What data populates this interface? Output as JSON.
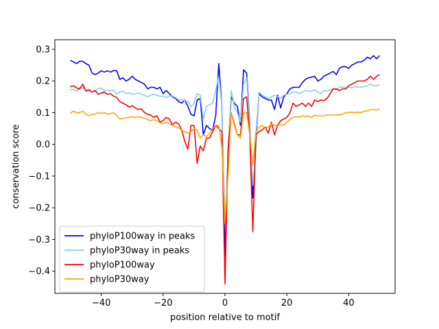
{
  "chart_data": {
    "type": "line",
    "xlabel": "position relative to motif",
    "ylabel": "conservation score",
    "xlim": [
      -55,
      55
    ],
    "ylim": [
      -0.47,
      0.33
    ],
    "xticks": [
      -40,
      -20,
      0,
      20,
      40
    ],
    "xtick_labels": [
      "−40",
      "−20",
      "0",
      "20",
      "40"
    ],
    "yticks": [
      -0.4,
      -0.3,
      -0.2,
      -0.1,
      0.0,
      0.1,
      0.2,
      0.3
    ],
    "ytick_labels": [
      "−0.4",
      "−0.3",
      "−0.2",
      "−0.1",
      "0.0",
      "0.1",
      "0.2",
      "0.3"
    ],
    "grid": false,
    "legend_position": "lower-left",
    "x_range": [
      -50,
      50
    ],
    "series": [
      {
        "name": "phyloP100way in peaks",
        "color": "#0000ff",
        "values": [
          0.265,
          0.26,
          0.255,
          0.262,
          0.262,
          0.255,
          0.25,
          0.225,
          0.22,
          0.225,
          0.232,
          0.228,
          0.232,
          0.228,
          0.233,
          0.232,
          0.205,
          0.21,
          0.2,
          0.205,
          0.215,
          0.205,
          0.2,
          0.195,
          0.19,
          0.175,
          0.18,
          0.18,
          0.175,
          0.18,
          0.16,
          0.17,
          0.16,
          0.15,
          0.145,
          0.135,
          0.13,
          0.14,
          0.12,
          0.095,
          0.09,
          0.14,
          0.145,
          0.03,
          0.06,
          0.05,
          0.045,
          0.09,
          0.255,
          0.12,
          -0.35,
          -0.02,
          0.15,
          0.13,
          0.12,
          0.06,
          0.235,
          0.225,
          0.07,
          -0.17,
          0.01,
          0.16,
          0.15,
          0.145,
          0.14,
          0.14,
          0.11,
          0.155,
          0.115,
          0.15,
          0.16,
          0.175,
          0.18,
          0.18,
          0.18,
          0.195,
          0.205,
          0.21,
          0.212,
          0.215,
          0.2,
          0.205,
          0.215,
          0.22,
          0.225,
          0.23,
          0.22,
          0.24,
          0.245,
          0.245,
          0.24,
          0.25,
          0.255,
          0.26,
          0.26,
          0.265,
          0.275,
          0.27,
          0.28,
          0.27,
          0.28
        ]
      },
      {
        "name": "phyloP30way in peaks",
        "color": "#87ceeb",
        "values": [
          0.172,
          0.173,
          0.168,
          0.175,
          0.18,
          0.172,
          0.17,
          0.165,
          0.168,
          0.175,
          0.178,
          0.17,
          0.172,
          0.168,
          0.17,
          0.158,
          0.165,
          0.168,
          0.16,
          0.162,
          0.158,
          0.16,
          0.162,
          0.158,
          0.155,
          0.15,
          0.155,
          0.158,
          0.155,
          0.152,
          0.152,
          0.148,
          0.152,
          0.152,
          0.148,
          0.14,
          0.142,
          0.138,
          0.135,
          0.12,
          0.13,
          0.16,
          0.155,
          0.08,
          0.12,
          0.125,
          0.13,
          0.17,
          0.215,
          0.12,
          -0.24,
          -0.04,
          0.17,
          0.12,
          0.1,
          0.07,
          0.19,
          0.21,
          0.06,
          -0.13,
          -0.02,
          0.165,
          0.155,
          0.15,
          0.145,
          0.15,
          0.155,
          0.15,
          0.145,
          0.155,
          0.158,
          0.16,
          0.165,
          0.165,
          0.16,
          0.165,
          0.17,
          0.168,
          0.168,
          0.172,
          0.165,
          0.16,
          0.17,
          0.168,
          0.172,
          0.175,
          0.172,
          0.18,
          0.182,
          0.178,
          0.18,
          0.178,
          0.182,
          0.18,
          0.18,
          0.182,
          0.185,
          0.19,
          0.185,
          0.185,
          0.188
        ]
      },
      {
        "name": "phyloP100way",
        "color": "#ff0000",
        "values": [
          0.182,
          0.185,
          0.178,
          0.175,
          0.19,
          0.168,
          0.172,
          0.165,
          0.17,
          0.158,
          0.162,
          0.165,
          0.158,
          0.16,
          0.152,
          0.148,
          0.135,
          0.13,
          0.125,
          0.118,
          0.122,
          0.115,
          0.11,
          0.112,
          0.1,
          0.095,
          0.092,
          0.085,
          0.09,
          0.07,
          0.075,
          0.085,
          0.08,
          0.062,
          0.07,
          0.065,
          0.045,
          0.01,
          -0.015,
          0.06,
          0.06,
          -0.06,
          -0.005,
          -0.02,
          0.02,
          0.02,
          0.04,
          0.06,
          0.05,
          0.04,
          -0.44,
          -0.02,
          0.1,
          0.065,
          0.03,
          0.03,
          0.145,
          0.15,
          0.03,
          -0.275,
          0.03,
          0.04,
          0.045,
          0.055,
          0.035,
          0.07,
          0.03,
          0.06,
          0.075,
          0.08,
          0.085,
          0.1,
          0.13,
          0.12,
          0.125,
          0.13,
          0.12,
          0.13,
          0.12,
          0.14,
          0.135,
          0.14,
          0.138,
          0.145,
          0.16,
          0.175,
          0.175,
          0.17,
          0.175,
          0.175,
          0.185,
          0.19,
          0.195,
          0.2,
          0.2,
          0.2,
          0.205,
          0.215,
          0.205,
          0.215,
          0.22
        ]
      },
      {
        "name": "phyloP30way",
        "color": "#ffa500",
        "values": [
          0.098,
          0.105,
          0.1,
          0.1,
          0.105,
          0.095,
          0.09,
          0.095,
          0.095,
          0.1,
          0.098,
          0.1,
          0.095,
          0.097,
          0.1,
          0.09,
          0.08,
          0.082,
          0.084,
          0.085,
          0.087,
          0.085,
          0.087,
          0.085,
          0.082,
          0.078,
          0.075,
          0.078,
          0.075,
          0.068,
          0.065,
          0.07,
          0.065,
          0.06,
          0.055,
          0.052,
          0.045,
          0.04,
          0.035,
          0.04,
          0.05,
          0.045,
          0.02,
          0.03,
          0.025,
          0.035,
          0.05,
          0.06,
          0.06,
          -0.01,
          -0.25,
          -0.1,
          0.1,
          0.06,
          0.03,
          0.02,
          0.1,
          0.1,
          0.03,
          -0.065,
          0.04,
          0.055,
          0.06,
          0.05,
          0.055,
          0.065,
          0.06,
          0.06,
          0.062,
          0.06,
          0.07,
          0.078,
          0.085,
          0.087,
          0.086,
          0.09,
          0.088,
          0.09,
          0.085,
          0.092,
          0.09,
          0.09,
          0.09,
          0.093,
          0.092,
          0.093,
          0.092,
          0.094,
          0.095,
          0.1,
          0.1,
          0.102,
          0.1,
          0.102,
          0.1,
          0.105,
          0.105,
          0.11,
          0.11,
          0.108,
          0.112
        ]
      }
    ]
  }
}
